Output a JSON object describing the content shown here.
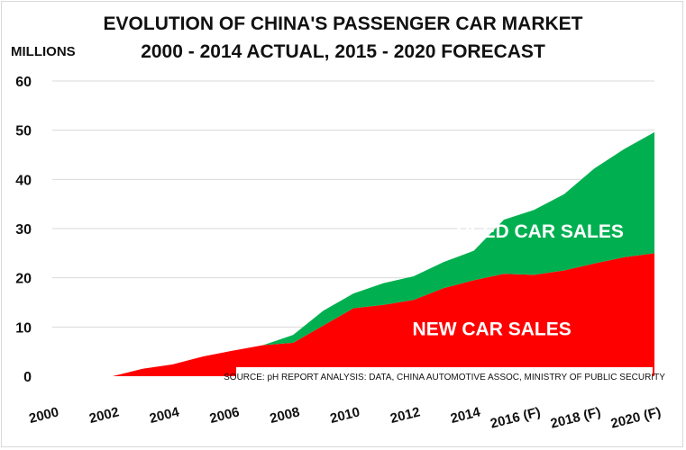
{
  "chart_data": {
    "type": "area",
    "title": "EVOLUTION OF CHINA'S PASSENGER CAR MARKET",
    "subtitle": "2000 - 2014 ACTUAL, 2015 - 2020 FORECAST",
    "ylabel": "MILLIONS",
    "xlabel": "",
    "ylim": [
      0,
      60
    ],
    "yticks": [
      0,
      10,
      20,
      30,
      40,
      50,
      60
    ],
    "stacked": true,
    "grid": true,
    "legend": "none",
    "x": [
      2000,
      2001,
      2002,
      2003,
      2004,
      2005,
      2006,
      2007,
      2008,
      2009,
      2010,
      2011,
      2012,
      2013,
      2014,
      2015,
      2016,
      2017,
      2018,
      2019,
      2020
    ],
    "xticks": [
      {
        "x": 2000,
        "label": "2000"
      },
      {
        "x": 2002,
        "label": "2002"
      },
      {
        "x": 2004,
        "label": "2004"
      },
      {
        "x": 2006,
        "label": "2006"
      },
      {
        "x": 2008,
        "label": "2008"
      },
      {
        "x": 2010,
        "label": "2010"
      },
      {
        "x": 2012,
        "label": "2012"
      },
      {
        "x": 2014,
        "label": "2014"
      },
      {
        "x": 2016,
        "label": "2016 (F)"
      },
      {
        "x": 2018,
        "label": "2018 (F)"
      },
      {
        "x": 2020,
        "label": "2020 (F)"
      }
    ],
    "series": [
      {
        "name": "NEW CAR SALES",
        "color": "#ff0000",
        "values": [
          0,
          0,
          0,
          1.5,
          2.4,
          4.0,
          5.2,
          6.3,
          6.8,
          10.3,
          13.8,
          14.5,
          15.5,
          17.9,
          19.5,
          20.8,
          20.6,
          21.5,
          22.9,
          24.2,
          25.0
        ]
      },
      {
        "name": "USED CAR SALES",
        "color": "#00b050",
        "values": [
          0,
          0,
          0,
          0,
          0,
          0,
          0,
          0,
          1.6,
          3.0,
          3.0,
          4.4,
          4.8,
          5.3,
          6.0,
          11.0,
          13.2,
          15.5,
          19.3,
          22.0,
          24.6
        ]
      }
    ],
    "source_note": "SOURCE: pH REPORT ANALYSIS: DATA, CHINA AUTOMOTIVE ASSOC, MINISTRY OF PUBLIC SECURITY"
  }
}
